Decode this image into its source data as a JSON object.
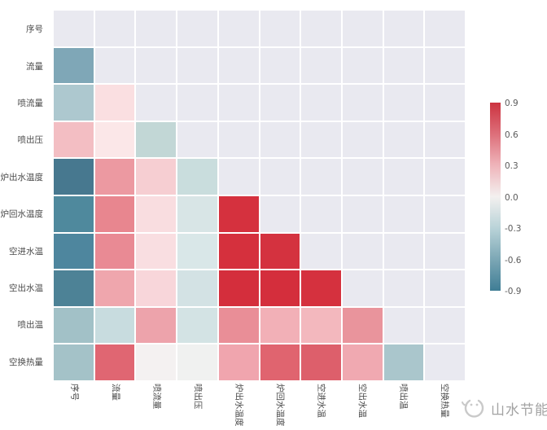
{
  "chart_data": {
    "type": "heatmap",
    "title": "",
    "subtitle": "lower-triangular correlation matrix, diagonal and upper triangle masked (shown as plot background)",
    "variables": [
      "序号",
      "流量",
      "喷流量",
      "喷出压",
      "炉出水温度",
      "炉回水温度",
      "空进水温",
      "空出水温",
      "喷出温",
      "空换热量"
    ],
    "x_tick_labels": [
      "序号",
      "流量",
      "喷流量",
      "喷出压",
      "炉出水温度",
      "炉回水温度",
      "空进水温",
      "空出水温",
      "喷出温",
      "空换热量"
    ],
    "y_tick_labels": [
      "序号",
      "流量",
      "喷流量",
      "喷出压",
      "炉出水温度",
      "炉回水温度",
      "空进水温",
      "空出水温",
      "喷出温",
      "空换热量"
    ],
    "vmin": -0.9,
    "vmax": 0.9,
    "grid": "on (white gridlines)",
    "legend_position": "colorbar right",
    "plot_background": "#E9E9F0",
    "matrix": [
      [
        null,
        null,
        null,
        null,
        null,
        null,
        null,
        null,
        null,
        null
      ],
      [
        -0.45,
        null,
        null,
        null,
        null,
        null,
        null,
        null,
        null,
        null
      ],
      [
        -0.3,
        0.12,
        null,
        null,
        null,
        null,
        null,
        null,
        null,
        null
      ],
      [
        0.28,
        0.08,
        -0.25,
        null,
        null,
        null,
        null,
        null,
        null,
        null
      ],
      [
        -0.7,
        0.43,
        0.2,
        -0.2,
        null,
        null,
        null,
        null,
        null,
        null
      ],
      [
        -0.58,
        0.5,
        0.12,
        -0.1,
        0.85,
        null,
        null,
        null,
        null,
        null
      ],
      [
        -0.6,
        0.48,
        0.12,
        -0.1,
        0.85,
        0.85,
        null,
        null,
        null,
        null
      ],
      [
        -0.63,
        0.37,
        0.17,
        -0.14,
        0.87,
        0.87,
        0.85,
        null,
        null,
        null
      ],
      [
        -0.32,
        -0.18,
        0.38,
        -0.15,
        0.45,
        0.3,
        0.28,
        0.43,
        null,
        null
      ],
      [
        -0.3,
        0.55,
        0.02,
        0.0,
        0.35,
        0.56,
        0.58,
        0.34,
        -0.28,
        null
      ]
    ],
    "cell_colors": [
      [
        null,
        null,
        null,
        null,
        null,
        null,
        null,
        null,
        null,
        null
      ],
      [
        "#7FA7B7",
        null,
        null,
        null,
        null,
        null,
        null,
        null,
        null,
        null
      ],
      [
        "#ADC8CF",
        "#FADFE1",
        null,
        null,
        null,
        null,
        null,
        null,
        null,
        null
      ],
      [
        "#F3BEC3",
        "#FBE7E8",
        "#C2D7D6",
        null,
        null,
        null,
        null,
        null,
        null,
        null
      ],
      [
        "#47788F",
        "#EC99A1",
        "#F6CED2",
        "#C9DDDD",
        null,
        null,
        null,
        null,
        null,
        null
      ],
      [
        "#4F899D",
        "#E8868F",
        "#F9DDE0",
        "#D8E5E6",
        "#D5313E",
        null,
        null,
        null,
        null,
        null
      ],
      [
        "#4E869E",
        "#E98A94",
        "#F9DEE1",
        "#D9E7E8",
        "#D5303D",
        "#D4323F",
        null,
        null,
        null,
        null
      ],
      [
        "#4D8296",
        "#EFA6AD",
        "#F8D6DA",
        "#D3E2E4",
        "#D42E3C",
        "#D42E3C",
        "#D5313E",
        null,
        null,
        null
      ],
      [
        "#A2C1C7",
        "#C8DCDF",
        "#EDA3AB",
        "#D3E3E4",
        "#E98E97",
        "#F2B0B7",
        "#F3B8BE",
        "#E9949C",
        null,
        null
      ],
      [
        "#A4C2C8",
        "#E06672",
        "#F4F1F1",
        "#F0F1F0",
        "#F0A5AE",
        "#E0646F",
        "#DD5F6B",
        "#F0A9B1",
        "#AAC6CC",
        null
      ]
    ],
    "colorbar": {
      "tick_labels": [
        "0.9",
        "0.6",
        "0.3",
        "0.0",
        "-0.3",
        "-0.6",
        "-0.9"
      ],
      "gradient_stops": [
        "#CC3340 0%",
        "#DD6F7A 16.7%",
        "#EFB4BA 33.3%",
        "#F3F0EF 50%",
        "#B9D3D8 66.7%",
        "#7CA7B5 83.3%",
        "#3F7D95 100%"
      ],
      "max_color": "#CC3340",
      "mid_color": "#F3F0EF",
      "min_color": "#3F7D95"
    }
  },
  "watermark": {
    "logo_icon": "swirl-circle-logo",
    "text": "山水节能",
    "color": "#a3a3a3"
  }
}
